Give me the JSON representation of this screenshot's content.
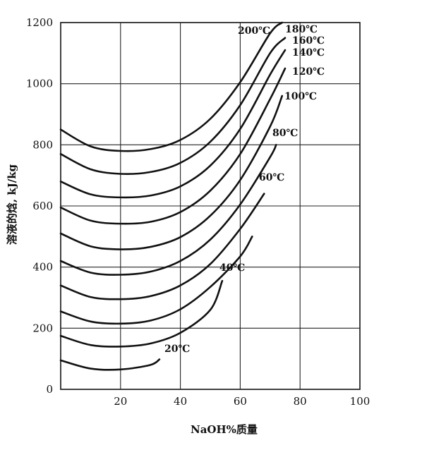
{
  "chart_data": {
    "type": "line",
    "title": "",
    "xlabel": "NaOH%质量",
    "ylabel": "溶液的焓, kJ/kg",
    "xlim": [
      0,
      100
    ],
    "ylim": [
      0,
      1200
    ],
    "x_ticks": [
      "20",
      "40",
      "60",
      "80",
      "100"
    ],
    "y_ticks": [
      "0",
      "200",
      "400",
      "600",
      "800",
      "1000",
      "1200"
    ],
    "grid": true,
    "legend": "none",
    "series": [
      {
        "name": "20℃",
        "x": [
          0,
          10,
          20,
          30,
          33
        ],
        "y": [
          95,
          68,
          65,
          80,
          98
        ]
      },
      {
        "name": "40℃",
        "x": [
          0,
          10,
          20,
          30,
          40,
          50,
          54
        ],
        "y": [
          175,
          145,
          140,
          150,
          185,
          260,
          355
        ]
      },
      {
        "name": "60℃",
        "x": [
          0,
          10,
          20,
          30,
          40,
          50,
          60,
          64
        ],
        "y": [
          255,
          222,
          215,
          225,
          262,
          335,
          435,
          500
        ]
      },
      {
        "name": "80℃",
        "x": [
          0,
          10,
          20,
          30,
          40,
          50,
          60,
          68
        ],
        "y": [
          340,
          302,
          295,
          305,
          340,
          410,
          525,
          640
        ]
      },
      {
        "name": "100℃",
        "x": [
          0,
          10,
          20,
          30,
          40,
          50,
          60,
          70,
          72
        ],
        "y": [
          420,
          382,
          375,
          385,
          420,
          490,
          605,
          760,
          800
        ]
      },
      {
        "name": "120℃",
        "x": [
          0,
          10,
          20,
          30,
          40,
          50,
          60,
          70,
          74
        ],
        "y": [
          510,
          468,
          458,
          466,
          498,
          568,
          685,
          860,
          960
        ]
      },
      {
        "name": "140℃",
        "x": [
          0,
          10,
          20,
          30,
          40,
          50,
          60,
          70,
          75
        ],
        "y": [
          595,
          552,
          542,
          548,
          580,
          650,
          770,
          950,
          1050
        ]
      },
      {
        "name": "160℃",
        "x": [
          0,
          10,
          20,
          30,
          40,
          50,
          60,
          70,
          75
        ],
        "y": [
          680,
          638,
          628,
          634,
          664,
          732,
          852,
          1030,
          1110
        ]
      },
      {
        "name": "180℃",
        "x": [
          0,
          10,
          20,
          30,
          40,
          50,
          60,
          70,
          75
        ],
        "y": [
          770,
          720,
          705,
          711,
          741,
          810,
          930,
          1100,
          1150
        ]
      },
      {
        "name": "200℃",
        "x": [
          0,
          10,
          20,
          30,
          40,
          50,
          60,
          70,
          74
        ],
        "y": [
          850,
          795,
          780,
          786,
          816,
          885,
          1005,
          1165,
          1200
        ]
      }
    ]
  }
}
